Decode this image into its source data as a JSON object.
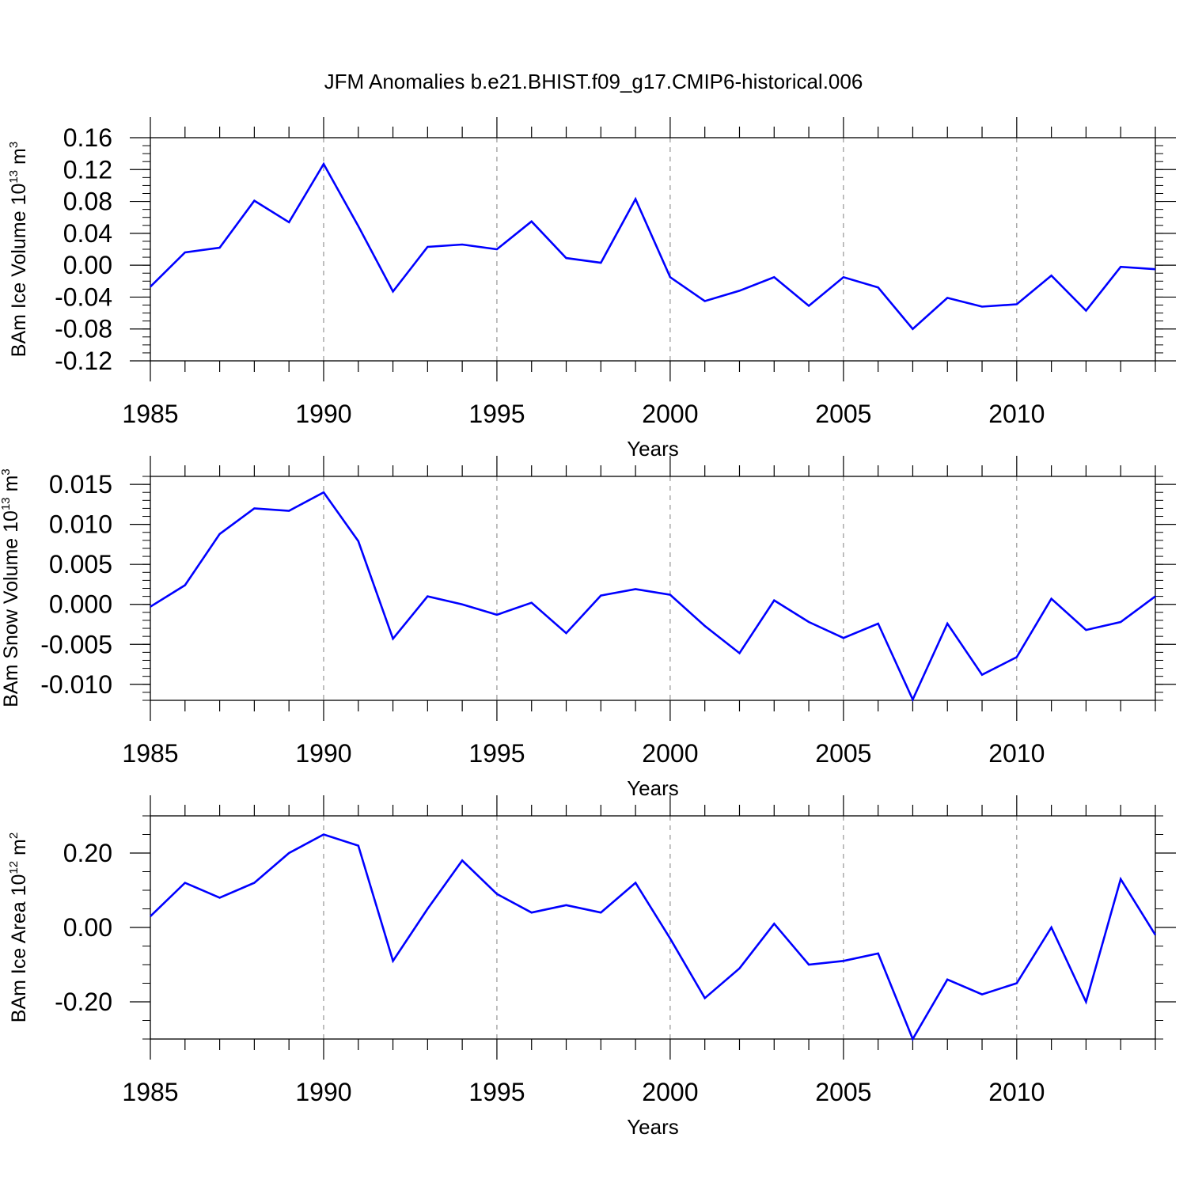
{
  "chart_data": [
    {
      "type": "line",
      "title": "JFM Anomalies b.e21.BHIST.f09_g17.CMIP6-historical.006",
      "xlabel": "Years",
      "ylabel": {
        "text": "BAm Ice Volume 10",
        "exp": "13",
        "unit": " m",
        "unit_exp": "3"
      },
      "xlim": [
        1985,
        2014
      ],
      "ylim": [
        -0.12,
        0.16
      ],
      "xticks": [
        "1985",
        "1990",
        "1995",
        "2000",
        "2005",
        "2010"
      ],
      "yticks": [
        "0.16",
        "0.12",
        "0.08",
        "0.04",
        "0.00",
        "-0.04",
        "-0.08",
        "-0.12"
      ],
      "grid": "dashed vertical at labeled years",
      "series": [
        {
          "color": "#0000ff",
          "x": [
            1985,
            1986,
            1987,
            1988,
            1989,
            1990,
            1991,
            1992,
            1993,
            1994,
            1995,
            1996,
            1997,
            1998,
            1999,
            2000,
            2001,
            2002,
            2003,
            2004,
            2005,
            2006,
            2007,
            2008,
            2009,
            2010,
            2011,
            2012,
            2013,
            2014
          ],
          "y": [
            -0.027,
            0.016,
            0.022,
            0.081,
            0.054,
            0.127,
            0.049,
            -0.033,
            0.023,
            0.026,
            0.02,
            0.055,
            0.009,
            0.003,
            0.083,
            -0.015,
            -0.045,
            -0.032,
            -0.015,
            -0.051,
            -0.015,
            -0.028,
            -0.08,
            -0.041,
            -0.052,
            -0.049,
            -0.013,
            -0.057,
            -0.002,
            -0.005
          ]
        }
      ]
    },
    {
      "type": "line",
      "xlabel": "Years",
      "ylabel": {
        "text": "BAm Snow Volume 10",
        "exp": "13",
        "unit": " m",
        "unit_exp": "3"
      },
      "xlim": [
        1985,
        2014
      ],
      "ylim": [
        -0.012,
        0.016
      ],
      "xticks": [
        "1985",
        "1990",
        "1995",
        "2000",
        "2005",
        "2010"
      ],
      "yticks": [
        "0.015",
        "0.010",
        "0.005",
        "0.000",
        "-0.005",
        "-0.010"
      ],
      "grid": "dashed vertical at labeled years",
      "series": [
        {
          "color": "#0000ff",
          "x": [
            1985,
            1986,
            1987,
            1988,
            1989,
            1990,
            1991,
            1992,
            1993,
            1994,
            1995,
            1996,
            1997,
            1998,
            1999,
            2000,
            2001,
            2002,
            2003,
            2004,
            2005,
            2006,
            2007,
            2008,
            2009,
            2010,
            2011,
            2012,
            2013,
            2014
          ],
          "y": [
            -0.0003,
            0.0024,
            0.0088,
            0.012,
            0.0117,
            0.014,
            0.0079,
            -0.0043,
            0.001,
            0.0,
            -0.0013,
            0.0002,
            -0.0036,
            0.0011,
            0.0019,
            0.0012,
            -0.0027,
            -0.0061,
            0.0005,
            -0.0022,
            -0.0042,
            -0.0024,
            -0.0119,
            -0.0024,
            -0.0088,
            -0.0066,
            0.0007,
            -0.0032,
            -0.0022,
            0.001
          ]
        }
      ]
    },
    {
      "type": "line",
      "xlabel": "Years",
      "ylabel": {
        "text": "BAm Ice Area 10",
        "exp": "12",
        "unit": " m",
        "unit_exp": "2"
      },
      "xlim": [
        1985,
        2014
      ],
      "ylim": [
        -0.3,
        0.3
      ],
      "xticks": [
        "1985",
        "1990",
        "1995",
        "2000",
        "2005",
        "2010"
      ],
      "yticks": [
        "0.20",
        "0.00",
        "-0.20"
      ],
      "grid": "dashed vertical at labeled years",
      "series": [
        {
          "color": "#0000ff",
          "x": [
            1985,
            1986,
            1987,
            1988,
            1989,
            1990,
            1991,
            1992,
            1993,
            1994,
            1995,
            1996,
            1997,
            1998,
            1999,
            2000,
            2001,
            2002,
            2003,
            2004,
            2005,
            2006,
            2007,
            2008,
            2009,
            2010,
            2011,
            2012,
            2013,
            2014
          ],
          "y": [
            0.03,
            0.12,
            0.08,
            0.12,
            0.2,
            0.25,
            0.22,
            -0.09,
            0.05,
            0.18,
            0.09,
            0.04,
            0.06,
            0.04,
            0.12,
            -0.03,
            -0.19,
            -0.11,
            0.01,
            -0.1,
            -0.09,
            -0.07,
            -0.3,
            -0.14,
            -0.18,
            -0.15,
            0.0,
            -0.2,
            0.13,
            -0.02
          ]
        }
      ]
    }
  ]
}
